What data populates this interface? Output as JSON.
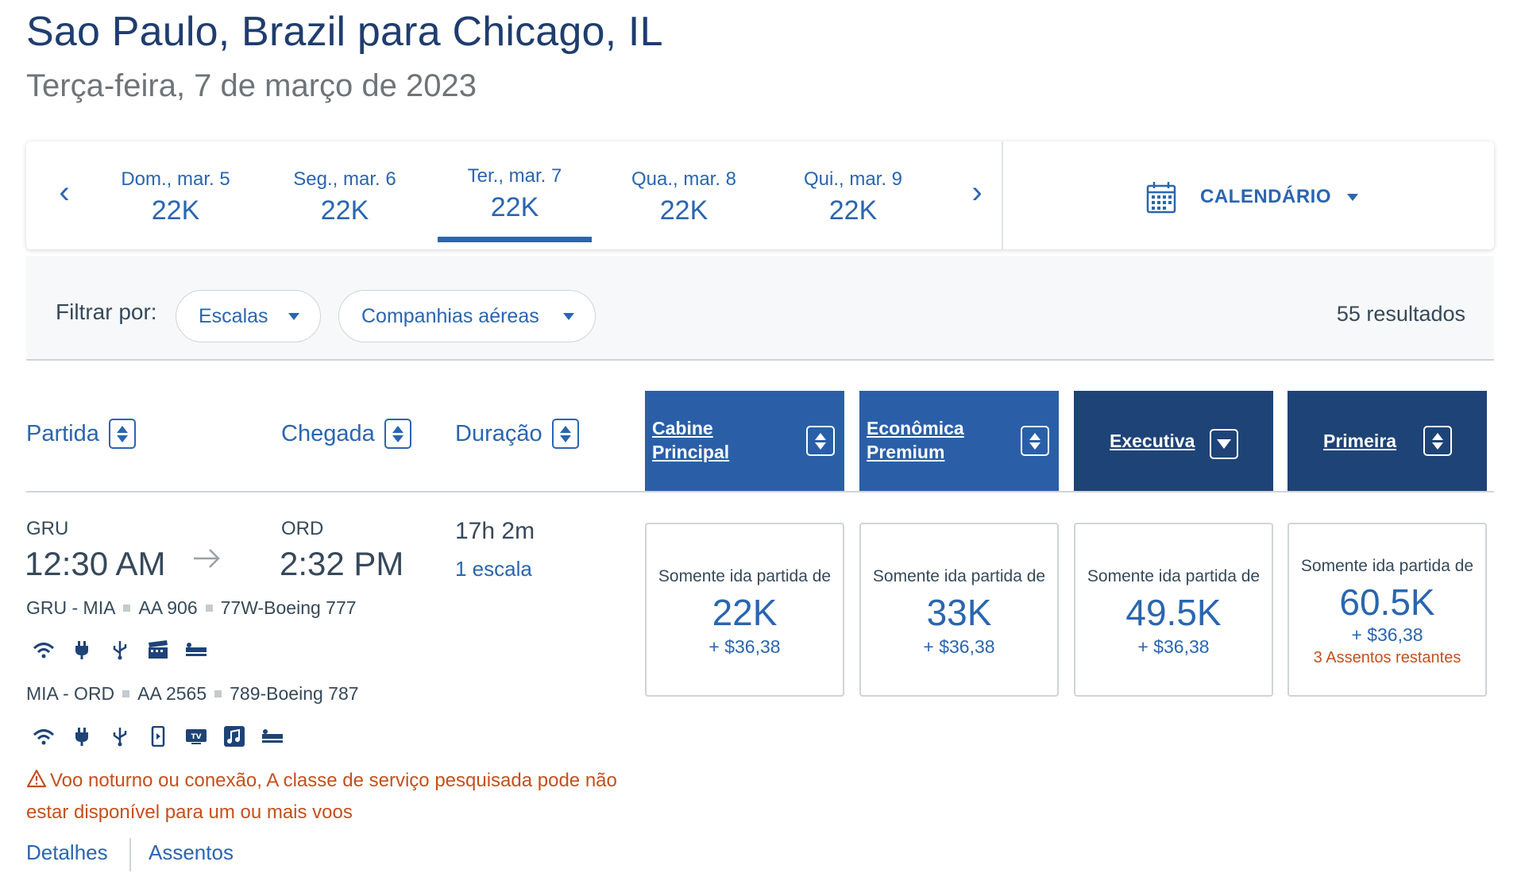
{
  "header": {
    "title": "Sao Paulo, Brazil para Chicago, IL",
    "subtitle": "Terça-feira, 7 de março de 2023"
  },
  "date_strip": {
    "prev_icon": "chevron-left-icon",
    "next_icon": "chevron-right-icon",
    "prev_glyph": "‹",
    "next_glyph": "›",
    "days": [
      {
        "label": "Dom., mar. 5",
        "price": "22K"
      },
      {
        "label": "Seg., mar. 6",
        "price": "22K"
      },
      {
        "label": "Ter., mar. 7",
        "price": "22K",
        "selected": true
      },
      {
        "label": "Qua., mar. 8",
        "price": "22K"
      },
      {
        "label": "Qui., mar. 9",
        "price": "22K"
      }
    ],
    "calendar_label": "CALENDÁRIO",
    "calendar_icon": "calendar-icon"
  },
  "filters": {
    "label": "Filtrar por:",
    "stops": "Escalas",
    "airlines": "Companhias aéreas",
    "result_count": "55 resultados"
  },
  "sort": {
    "departure": "Partida",
    "arrival": "Chegada",
    "duration": "Duração"
  },
  "cabins": [
    {
      "label": "Cabine Principal",
      "line1": "Cabine",
      "line2": "Principal",
      "color": "#2a5fa8"
    },
    {
      "label": "Econômica Premium",
      "line1": "Econômica",
      "line2": "Premium",
      "color": "#2a5fa8"
    },
    {
      "label": "Executiva",
      "color": "#1e4377",
      "sort_state": "descending"
    },
    {
      "label": "Primeira",
      "color": "#1e4377"
    }
  ],
  "flight": {
    "origin_code": "GRU",
    "departure_time": "12:30 AM",
    "destination_code": "ORD",
    "arrival_time": "2:32 PM",
    "duration": "17h 2m",
    "stops": "1 escala",
    "segments": [
      {
        "route": "GRU - MIA",
        "flight_no": "AA 906",
        "aircraft": "77W-Boeing 777",
        "amenities": [
          "wifi-icon",
          "power-outlet-icon",
          "usb-icon",
          "entertainment-icon",
          "lie-flat-seat-icon"
        ]
      },
      {
        "route": "MIA - ORD",
        "flight_no": "AA 2565",
        "aircraft": "789-Boeing 787",
        "amenities": [
          "wifi-icon",
          "power-outlet-icon",
          "usb-icon",
          "device-streaming-icon",
          "tv-icon",
          "music-icon",
          "lie-flat-seat-icon"
        ]
      }
    ],
    "warning": "Voo noturno ou conexão, A classe de serviço pesquisada pode não estar disponível para um ou mais voos",
    "details_link": "Detalhes",
    "seats_link": "Assentos",
    "fares": [
      {
        "caption": "Somente ida partida de",
        "miles": "22K",
        "tax": "+ $36,38"
      },
      {
        "caption": "Somente ida partida de",
        "miles": "33K",
        "tax": "+ $36,38"
      },
      {
        "caption": "Somente ida partida de",
        "miles": "49.5K",
        "tax": "+ $36,38"
      },
      {
        "caption": "Somente ida partida de",
        "miles": "60.5K",
        "tax": "+ $36,38",
        "seats_left": "3 Assentos restantes"
      }
    ]
  },
  "colors": {
    "brand_blue": "#2a65b0",
    "header_dark": "#1e4377",
    "warning": "#c4501b",
    "title": "#1f3d6e"
  }
}
